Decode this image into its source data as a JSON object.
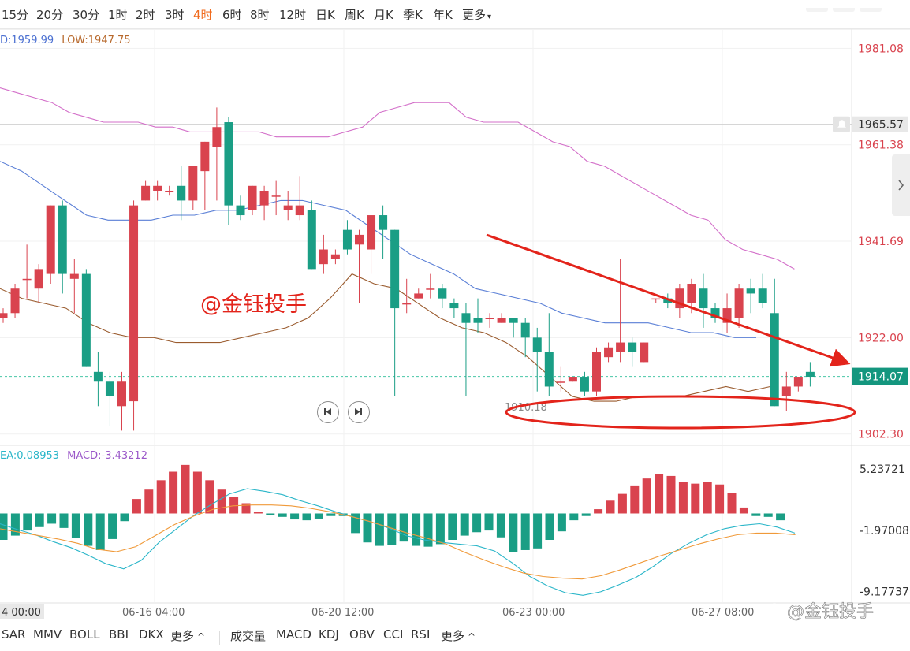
{
  "timeframes": [
    "15分",
    "20分",
    "30分",
    "1时",
    "2时",
    "3时",
    "4时",
    "6时",
    "8时",
    "12时",
    "日K",
    "周K",
    "月K",
    "季K",
    "年K",
    "更多"
  ],
  "active_timeframe": "4时",
  "legend": {
    "high": "D:1959.99",
    "low": "LOW:1947.75"
  },
  "macd_legend": {
    "dea": "EA:0.08953",
    "macd": "MACD:-3.43212"
  },
  "price_axis": [
    "1981.08",
    "1961.38",
    "1941.69",
    "1922.00",
    "1902.30"
  ],
  "price_lines": {
    "crosshair": "1965.57",
    "current": "1914.07"
  },
  "macd_axis": [
    "5.23721",
    "-1.97008",
    "-9.17737"
  ],
  "time_axis": [
    "4 00:00",
    "06-16 04:00",
    "06-20 12:00",
    "06-23 00:00",
    "06-27 08:00"
  ],
  "annotations": {
    "low_label": "1910.18",
    "watermark_main": "@金钰投手",
    "watermark_corner": "@金钰投手"
  },
  "indicators_left": [
    "SAR",
    "MMV",
    "BOLL",
    "BBI",
    "DKX",
    "更多"
  ],
  "indicators_right": [
    "成交量",
    "MACD",
    "KDJ",
    "OBV",
    "CCI",
    "RSI",
    "更多"
  ],
  "colors": {
    "up": "#d9434e",
    "down": "#1a9e85",
    "accent": "#f06b1e",
    "boll_upper": "#d36fc9",
    "boll_mid": "#5a7fd6",
    "boll_lower": "#9a5b2e",
    "dif": "#2bb6c9",
    "dea": "#f09a3a",
    "annotation": "#e3241b"
  },
  "chart_data": {
    "type": "candlestick",
    "y_range": [
      1900,
      1985
    ],
    "candles": [
      [
        1926,
        1928,
        1925,
        1927
      ],
      [
        1927,
        1933,
        1926,
        1932
      ],
      [
        1934,
        1941,
        1930,
        1934
      ],
      [
        1932,
        1937,
        1929,
        1936
      ],
      [
        1935,
        1949,
        1933,
        1949
      ],
      [
        1949,
        1950,
        1931,
        1935
      ],
      [
        1934,
        1938,
        1927,
        1935
      ],
      [
        1935,
        1936,
        1916,
        1916
      ],
      [
        1915,
        1919,
        1908,
        1913
      ],
      [
        1913,
        1915,
        1904,
        1910
      ],
      [
        1908,
        1915,
        1903,
        1913
      ],
      [
        1909,
        1950,
        1903,
        1949
      ],
      [
        1950,
        1954,
        1950,
        1953
      ],
      [
        1952,
        1954,
        1950,
        1953
      ],
      [
        1952,
        1953,
        1951,
        1952
      ],
      [
        1953,
        1957,
        1946,
        1950
      ],
      [
        1950,
        1957,
        1948,
        1957
      ],
      [
        1956,
        1962,
        1948,
        1962
      ],
      [
        1961,
        1969,
        1950,
        1965
      ],
      [
        1966,
        1967,
        1945,
        1949
      ],
      [
        1949,
        1951,
        1946,
        1947
      ],
      [
        1948,
        1953,
        1947,
        1953
      ],
      [
        1949,
        1953,
        1946,
        1952
      ],
      [
        1951,
        1954,
        1947,
        1951
      ],
      [
        1948,
        1952,
        1946,
        1949
      ],
      [
        1947,
        1955,
        1946,
        1949
      ],
      [
        1948,
        1950,
        1936,
        1936
      ],
      [
        1937,
        1943,
        1935,
        1940
      ],
      [
        1938,
        1940,
        1937,
        1939
      ],
      [
        1944,
        1946,
        1939,
        1940
      ],
      [
        1941,
        1944,
        1929,
        1943
      ],
      [
        1940,
        1947,
        1935,
        1947
      ],
      [
        1947,
        1949,
        1938,
        1944
      ],
      [
        1944,
        1944,
        1910,
        1928
      ],
      [
        1929,
        1934,
        1927,
        1929
      ],
      [
        1930,
        1932,
        1930,
        1931
      ],
      [
        1932,
        1935,
        1930,
        1932
      ],
      [
        1932,
        1933,
        1928,
        1930
      ],
      [
        1929,
        1930,
        1926,
        1928
      ],
      [
        1927,
        1929,
        1910,
        1925
      ],
      [
        1926,
        1930,
        1923,
        1925
      ],
      [
        1926,
        1927,
        1924,
        1926
      ],
      [
        1925,
        1927,
        1925,
        1926
      ],
      [
        1926,
        1926,
        1922,
        1925
      ],
      [
        1925,
        1926,
        1918,
        1922
      ],
      [
        1922,
        1924,
        1911,
        1919
      ],
      [
        1919,
        1927,
        1910,
        1912
      ],
      [
        1913,
        1916,
        1911,
        1913
      ],
      [
        1913,
        1914,
        1913,
        1914
      ],
      [
        1914,
        1915,
        1910,
        1911
      ],
      [
        1911,
        1920,
        1910,
        1919
      ],
      [
        1918,
        1921,
        1917,
        1920
      ],
      [
        1919,
        1938,
        1917,
        1921
      ],
      [
        1921,
        1922,
        1916,
        1919
      ],
      [
        1917,
        1921,
        1917,
        1921
      ],
      [
        1930,
        1930,
        1929,
        1930
      ],
      [
        1930,
        1931,
        1928,
        1929
      ],
      [
        1928,
        1933,
        1926,
        1932
      ],
      [
        1929,
        1934,
        1927,
        1933
      ],
      [
        1932,
        1935,
        1924,
        1928
      ],
      [
        1928,
        1929,
        1925,
        1926
      ],
      [
        1925,
        1931,
        1923,
        1928
      ],
      [
        1926,
        1933,
        1924,
        1932
      ],
      [
        1932,
        1934,
        1927,
        1931
      ],
      [
        1932,
        1935,
        1928,
        1929
      ],
      [
        1927,
        1934,
        1908,
        1908
      ],
      [
        1910,
        1915,
        1907,
        1912
      ],
      [
        1912,
        1914,
        1911,
        1914
      ],
      [
        1915,
        1917,
        1912,
        1914
      ]
    ],
    "boll_upper": [
      1973,
      1972,
      1971,
      1970,
      1968,
      1967,
      1966,
      1966,
      1966,
      1965,
      1965,
      1964,
      1964,
      1964,
      1964,
      1964,
      1963,
      1963,
      1963,
      1963,
      1964,
      1965,
      1968,
      1969,
      1970,
      1970,
      1970,
      1967,
      1966,
      1966,
      1966,
      1964,
      1962,
      1961,
      1958,
      1957,
      1955,
      1953,
      1951,
      1949,
      1947,
      1946,
      1942,
      1940,
      1939,
      1938,
      1936
    ],
    "boll_mid": [
      1958,
      1956,
      1953,
      1950,
      1947,
      1946,
      1946,
      1946,
      1947,
      1947,
      1948,
      1948,
      1949,
      1950,
      1950,
      1949,
      1948,
      1945,
      1942,
      1939,
      1937,
      1935,
      1932,
      1931,
      1930,
      1929,
      1927,
      1926,
      1925,
      1925,
      1925,
      1924,
      1923,
      1923,
      1922,
      1922
    ],
    "boll_lower": [
      1932,
      1930,
      1929,
      1928,
      1925,
      1923,
      1922,
      1922,
      1921,
      1921,
      1921,
      1922,
      1923,
      1924,
      1926,
      1930,
      1935,
      1933,
      1932,
      1929,
      1926,
      1924,
      1923,
      1921,
      1918,
      1914,
      1910,
      1909,
      1909,
      1910,
      1910,
      1910,
      1911,
      1912,
      1911,
      1912
    ],
    "macd_hist": [
      -3.1,
      -2.6,
      -2.0,
      -1.6,
      -1.2,
      -1.7,
      -2.9,
      -3.8,
      -4.3,
      -3.0,
      -0.9,
      1.7,
      2.8,
      3.9,
      4.9,
      5.7,
      4.9,
      3.9,
      2.8,
      1.9,
      1.2,
      0.2,
      -0.2,
      -0.4,
      -0.7,
      -0.8,
      -0.6,
      -0.3,
      -0.3,
      -2.3,
      -3.4,
      -3.8,
      -3.7,
      -3.3,
      -3.8,
      -3.9,
      -3.6,
      -3.1,
      -2.6,
      -2.2,
      -2.0,
      -2.8,
      -4.5,
      -4.3,
      -4.1,
      -3.1,
      -2.1,
      -0.8,
      -0.3,
      0.5,
      1.5,
      2.3,
      3.2,
      4.1,
      4.6,
      4.4,
      3.7,
      3.5,
      3.7,
      3.4,
      2.4,
      0.7,
      -0.3,
      -0.4,
      -0.8
    ],
    "macd_dif": [
      -1.2,
      -1.9,
      -2.5,
      -3.3,
      -4.0,
      -4.9,
      -5.9,
      -6.5,
      -5.5,
      -3.4,
      -1.8,
      -0.2,
      1.1,
      2.3,
      2.9,
      2.6,
      2.2,
      1.5,
      0.9,
      0.2,
      -0.4,
      -1.0,
      -1.7,
      -2.6,
      -3.1,
      -3.4,
      -3.6,
      -3.8,
      -4.4,
      -5.8,
      -7.4,
      -8.5,
      -9.3,
      -9.6,
      -9.2,
      -8.4,
      -7.5,
      -6.2,
      -4.7,
      -3.5,
      -2.5,
      -1.8,
      -1.4,
      -1.2,
      -1.6,
      -2.3
    ],
    "macd_dea": [
      -1.8,
      -2.2,
      -2.6,
      -3.0,
      -3.5,
      -4.2,
      -4.5,
      -3.9,
      -2.6,
      -1.3,
      -0.3,
      0.5,
      0.9,
      1.0,
      1.0,
      0.9,
      0.6,
      0.2,
      -0.3,
      -0.9,
      -1.6,
      -2.3,
      -2.9,
      -3.6,
      -4.6,
      -5.5,
      -6.3,
      -7.0,
      -7.4,
      -7.6,
      -7.7,
      -7.3,
      -6.6,
      -5.8,
      -5.0,
      -4.3,
      -3.6,
      -3.0,
      -2.5,
      -2.3,
      -2.3,
      -2.5
    ],
    "macd_range": [
      -10.5,
      8.0
    ]
  }
}
